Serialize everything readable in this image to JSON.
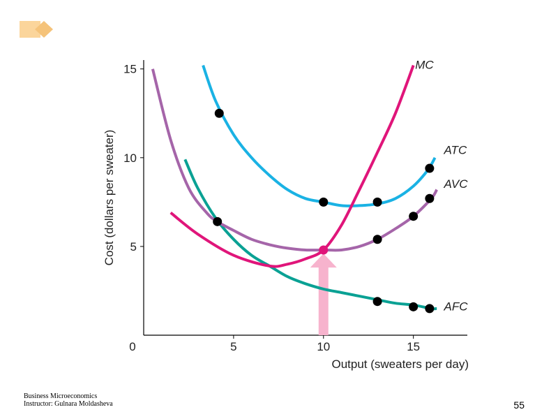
{
  "slide": {
    "footer_line1": "Business Microeconomics",
    "footer_line2": "Instructor: Gulnara Moldasheva",
    "page_number": "55",
    "logo_color": "#fbd59b"
  },
  "chart_data": {
    "type": "line",
    "title": "",
    "xlabel": "Output (sweaters per day)",
    "ylabel": "Cost (dollars per sweater)",
    "xlim": [
      0,
      18
    ],
    "ylim": [
      0,
      15.5
    ],
    "xticks": [
      5,
      10,
      15
    ],
    "yticks": [
      5,
      10,
      15
    ],
    "origin_label": "0",
    "grid": false,
    "series": [
      {
        "name": "MC",
        "color": "#e0157a",
        "x": [
          1.5,
          3,
          5,
          7,
          8,
          9,
          10,
          11,
          12,
          13,
          14,
          15
        ],
        "y": [
          6.9,
          5.7,
          4.5,
          3.9,
          4.0,
          4.3,
          4.8,
          6.2,
          8.2,
          10.3,
          12.5,
          15.2
        ]
      },
      {
        "name": "ATC",
        "color": "#1ab2e4",
        "x": [
          3.3,
          4,
          5,
          6,
          7,
          8,
          9,
          10,
          11,
          12,
          13,
          14,
          15,
          15.8,
          16.2
        ],
        "y": [
          15.2,
          13.2,
          11.3,
          10.0,
          9.0,
          8.2,
          7.7,
          7.5,
          7.3,
          7.3,
          7.4,
          7.7,
          8.4,
          9.3,
          10.0
        ]
      },
      {
        "name": "AVC",
        "color": "#a565a9",
        "x": [
          0.5,
          1.5,
          2.5,
          3.5,
          4.1,
          5,
          6,
          7,
          8,
          9,
          10,
          11,
          12,
          13,
          14,
          15,
          16,
          16.3
        ],
        "y": [
          15.0,
          11.0,
          8.3,
          6.9,
          6.4,
          5.9,
          5.4,
          5.1,
          4.9,
          4.8,
          4.8,
          4.8,
          5.0,
          5.4,
          6.0,
          6.7,
          7.7,
          8.2
        ]
      },
      {
        "name": "AFC",
        "color": "#0aa194",
        "x": [
          2.3,
          3,
          4,
          5,
          6,
          7,
          8,
          9,
          10,
          11,
          12,
          13,
          14,
          15,
          16,
          16.3
        ],
        "y": [
          9.9,
          8.3,
          6.6,
          5.4,
          4.5,
          3.9,
          3.3,
          2.9,
          2.6,
          2.4,
          2.2,
          2.0,
          1.8,
          1.7,
          1.5,
          1.5
        ]
      }
    ],
    "labels": [
      {
        "text": "MC",
        "x": 15.1,
        "y": 15.0
      },
      {
        "text": "ATC",
        "x": 16.7,
        "y": 10.2
      },
      {
        "text": "AVC",
        "x": 16.7,
        "y": 8.3
      },
      {
        "text": "AFC",
        "x": 16.7,
        "y": 1.4
      }
    ],
    "points": [
      {
        "series": "ATC",
        "x": 4.2,
        "y": 12.5
      },
      {
        "series": "ATC",
        "x": 10,
        "y": 7.5
      },
      {
        "series": "ATC",
        "x": 13,
        "y": 7.5
      },
      {
        "series": "ATC",
        "x": 15.9,
        "y": 9.4
      },
      {
        "series": "AVC",
        "x": 4.1,
        "y": 6.4
      },
      {
        "series": "AVC",
        "x": 13,
        "y": 5.4
      },
      {
        "series": "AVC",
        "x": 15,
        "y": 6.7
      },
      {
        "series": "AVC",
        "x": 15.9,
        "y": 7.7
      },
      {
        "series": "AFC",
        "x": 13,
        "y": 1.9
      },
      {
        "series": "AFC",
        "x": 15,
        "y": 1.6
      },
      {
        "series": "AFC",
        "x": 15.9,
        "y": 1.5
      }
    ],
    "highlight_point": {
      "x": 10,
      "y": 4.8,
      "color": "#e0157a"
    },
    "arrow": {
      "x": 10,
      "y_from": 0,
      "y_to": 4.6,
      "color": "#f7b3cd"
    }
  }
}
